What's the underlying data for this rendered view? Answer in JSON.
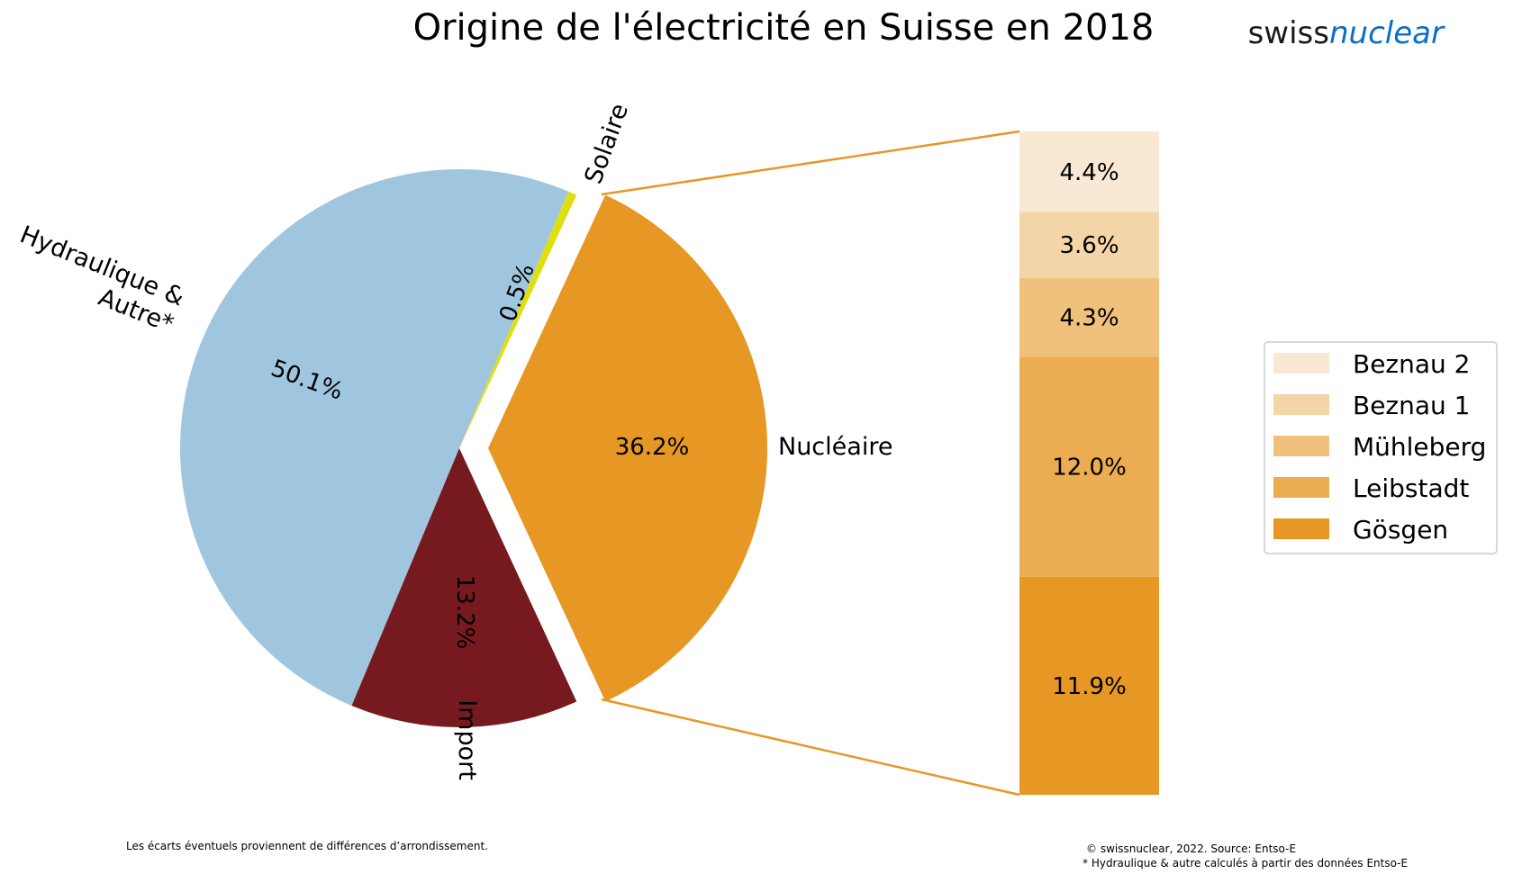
{
  "chart_data": {
    "type": "pie",
    "title": "Origine de l'électricité en Suisse en 2018",
    "pie": {
      "slices": [
        {
          "key": "solaire",
          "label": "Solaire",
          "value_label": "0.5%",
          "value": 0.5,
          "color": "#dfdf10"
        },
        {
          "key": "hydro",
          "label_lines": [
            "Hydraulique &",
            "Autre*"
          ],
          "value_label": "50.1%",
          "value": 50.1,
          "color": "#a0c6df"
        },
        {
          "key": "import",
          "label": "Import",
          "value_label": "13.2%",
          "value": 13.2,
          "color": "#771a20"
        },
        {
          "key": "nucleaire",
          "label": "Nucléaire",
          "value_label": "36.2%",
          "value": 36.2,
          "color": "#e69724",
          "exploded": true
        }
      ]
    },
    "breakdown": {
      "type": "stacked_bar",
      "of": "Nucléaire",
      "segments": [
        {
          "name": "Gösgen",
          "value": 11.9,
          "value_label": "11.9%",
          "color": "#e69724"
        },
        {
          "name": "Leibstadt",
          "value": 12.0,
          "value_label": "12.0%",
          "color": "#ebac52"
        },
        {
          "name": "Mühleberg",
          "value": 4.3,
          "value_label": "4.3%",
          "color": "#f0c17c"
        },
        {
          "name": "Beznau 1",
          "value": 3.6,
          "value_label": "3.6%",
          "color": "#f4d5a8"
        },
        {
          "name": "Beznau 2",
          "value": 4.4,
          "value_label": "4.4%",
          "color": "#f9e8d3"
        }
      ],
      "connector_color": "#e69724"
    },
    "legend": {
      "placement": "right",
      "entries": [
        "Beznau 2",
        "Beznau 1",
        "Mühleberg",
        "Leibstadt",
        "Gösgen"
      ]
    }
  },
  "branding": {
    "logo_part1": "swiss",
    "logo_part2": "nuclear",
    "logo_color": "#0a6ec7"
  },
  "footnotes": {
    "left": "Les écarts éventuels proviennent de différences d’arrondissement.",
    "copyright": "© swissnuclear, 2022. Source: Entso-E",
    "asterisk": "* Hydraulique & autre calculés à partir des données Entso-E"
  }
}
